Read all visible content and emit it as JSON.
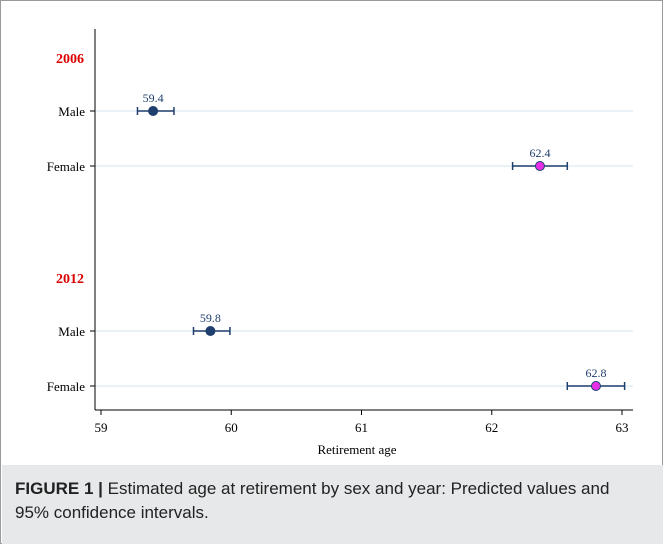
{
  "chart_data": {
    "type": "scatter",
    "xlabel": "Retirement age",
    "xlim": [
      59,
      63.1
    ],
    "xticks": [
      59,
      60,
      61,
      62,
      63
    ],
    "grid": "horizontal",
    "groups": [
      {
        "label": "2006",
        "rows": [
          {
            "label": "Male",
            "value": 59.4,
            "ci": [
              59.28,
              59.56
            ],
            "value_label": "59.4",
            "color": "#1f3f6e"
          },
          {
            "label": "Female",
            "value": 62.37,
            "ci": [
              62.16,
              62.58
            ],
            "value_label": "62.4",
            "color": "#e62ee6"
          }
        ]
      },
      {
        "label": "2012",
        "rows": [
          {
            "label": "Male",
            "value": 59.84,
            "ci": [
              59.71,
              59.99
            ],
            "value_label": "59.8",
            "color": "#1f3f6e"
          },
          {
            "label": "Female",
            "value": 62.8,
            "ci": [
              62.58,
              63.02
            ],
            "value_label": "62.8",
            "color": "#e62ee6"
          }
        ]
      }
    ]
  },
  "colors": {
    "group_label": "#dd0000",
    "ci_line": "#1f3f6e",
    "gridline": "#e2eef3",
    "caption_band": "#e7e8e9"
  },
  "caption": {
    "figure_label": "FIGURE 1",
    "separator": "|",
    "text": " Estimated age at retirement by sex and year: Predicted values and 95% confidence intervals."
  }
}
